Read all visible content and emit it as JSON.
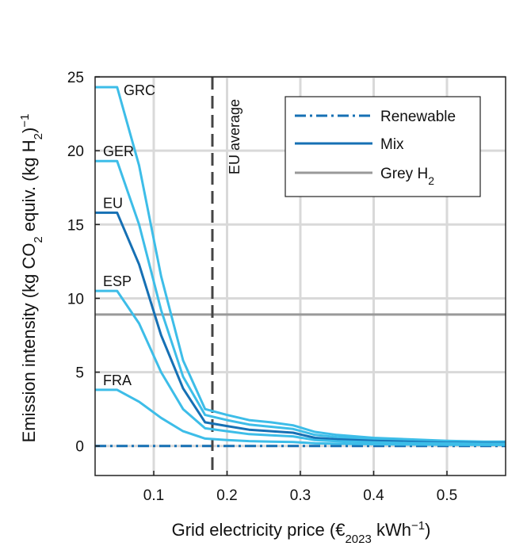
{
  "chart_data": {
    "type": "line",
    "title": "",
    "xlabel": "Grid electricity price (€2023 kWh−1)",
    "xlabel_parts": {
      "pre": "Grid electricity price (€",
      "sub": "2023",
      "mid": " kWh",
      "sup": "−1",
      "post": ")"
    },
    "ylabel": "Emission intensity (kg CO2 equiv. (kg H2)−1)",
    "ylabel_parts": {
      "a": "Emission intensity (kg CO",
      "sub1": "2",
      "b": " equiv. (kg H",
      "sub2": "2",
      "c": ")",
      "sup": "−1"
    },
    "xlim": [
      0.02,
      0.58
    ],
    "ylim": [
      -2,
      25
    ],
    "xticks": [
      0.1,
      0.2,
      0.3,
      0.4,
      0.5
    ],
    "xtick_labels": [
      "0.1",
      "0.2",
      "0.3",
      "0.4",
      "0.5"
    ],
    "yticks": [
      0,
      5,
      10,
      15,
      20,
      25
    ],
    "ytick_labels": [
      "0",
      "5",
      "10",
      "15",
      "20",
      "25"
    ],
    "grid": true,
    "legend_position": "top-right",
    "legend": [
      {
        "label": "Renewable",
        "style": "dashdot",
        "color": "#1670b4"
      },
      {
        "label": "Mix",
        "style": "solid",
        "color": "#1670b4"
      },
      {
        "label_main": "Grey H",
        "label_sub": "2",
        "style": "solid",
        "color": "#999999"
      }
    ],
    "vline": {
      "x": 0.18,
      "label": "EU average",
      "color": "#444444"
    },
    "hlines": [
      {
        "name": "Grey H2",
        "y": 8.9,
        "color": "#999999",
        "style": "solid"
      },
      {
        "name": "Renewable",
        "y": 0.0,
        "color": "#1670b4",
        "style": "dashdot"
      }
    ],
    "x": [
      0.02,
      0.05,
      0.08,
      0.11,
      0.14,
      0.17,
      0.2,
      0.23,
      0.26,
      0.29,
      0.32,
      0.35,
      0.4,
      0.45,
      0.5,
      0.55,
      0.58
    ],
    "series": [
      {
        "name": "GRC",
        "color": "#3dbde8",
        "values": [
          24.3,
          24.3,
          19.0,
          11.5,
          5.8,
          2.5,
          2.1,
          1.75,
          1.6,
          1.4,
          0.95,
          0.75,
          0.55,
          0.45,
          0.35,
          0.3,
          0.3
        ]
      },
      {
        "name": "GER",
        "color": "#3dbde8",
        "values": [
          19.3,
          19.3,
          15.0,
          9.2,
          4.7,
          2.1,
          1.75,
          1.45,
          1.3,
          1.15,
          0.75,
          0.6,
          0.45,
          0.38,
          0.3,
          0.25,
          0.25
        ]
      },
      {
        "name": "EU",
        "color": "#1670b4",
        "values": [
          15.8,
          15.8,
          12.3,
          7.5,
          3.9,
          1.6,
          1.35,
          1.1,
          1.0,
          0.9,
          0.55,
          0.45,
          0.35,
          0.28,
          0.22,
          0.2,
          0.2
        ]
      },
      {
        "name": "ESP",
        "color": "#3dbde8",
        "values": [
          10.5,
          10.5,
          8.3,
          5.0,
          2.5,
          1.2,
          1.0,
          0.8,
          0.72,
          0.65,
          0.4,
          0.32,
          0.25,
          0.2,
          0.18,
          0.15,
          0.15
        ]
      },
      {
        "name": "FRA",
        "color": "#3dbde8",
        "values": [
          3.8,
          3.8,
          3.0,
          1.9,
          1.0,
          0.5,
          0.4,
          0.33,
          0.3,
          0.27,
          0.18,
          0.15,
          0.12,
          0.1,
          0.08,
          0.07,
          0.07
        ]
      }
    ]
  }
}
